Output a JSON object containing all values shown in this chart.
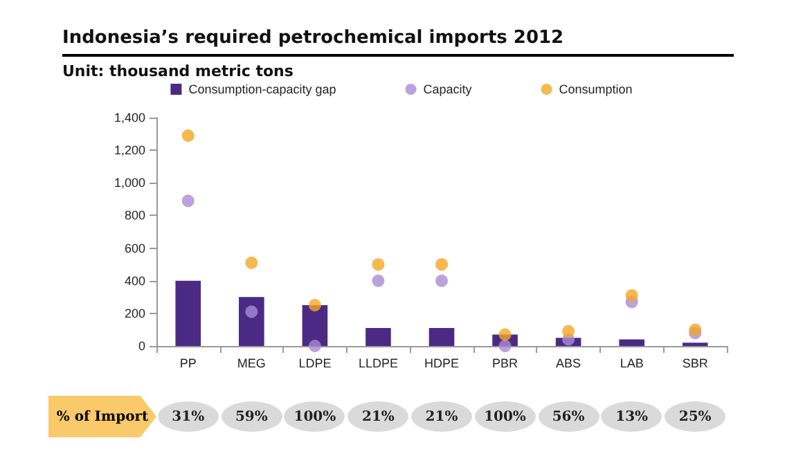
{
  "chart_data": {
    "type": "bar",
    "title": "Indonesia’s required petrochemical imports 2012",
    "subtitle": "Unit: thousand metric tons",
    "categories": [
      "PP",
      "MEG",
      "LDPE",
      "LLDPE",
      "HDPE",
      "PBR",
      "ABS",
      "LAB",
      "SBR"
    ],
    "series": [
      {
        "name": "Consumption-capacity gap",
        "color": "#4b2a86",
        "values": [
          400,
          300,
          250,
          110,
          110,
          70,
          50,
          40,
          20
        ]
      },
      {
        "name": "Capacity",
        "type": "scatter",
        "color": "#a98bd4",
        "values": [
          890,
          210,
          0,
          400,
          400,
          0,
          40,
          270,
          80
        ]
      },
      {
        "name": "Consumption",
        "type": "scatter",
        "color": "#f5a623",
        "values": [
          1290,
          510,
          250,
          500,
          500,
          70,
          90,
          310,
          100
        ]
      }
    ],
    "ylim": [
      0,
      1400
    ],
    "yticks": [
      0,
      200,
      400,
      600,
      800,
      {
        "value": 1000,
        "label": "1,000"
      },
      {
        "value": 1200,
        "label": "1,200"
      },
      {
        "value": 1400,
        "label": "1,400"
      }
    ],
    "grid": false,
    "legend": "top",
    "marker": "circle",
    "annotations": [
      "% of Import",
      "31%",
      "59%",
      "100%",
      "21%",
      "21%",
      "100%",
      "56%",
      "13%",
      "25%"
    ]
  }
}
